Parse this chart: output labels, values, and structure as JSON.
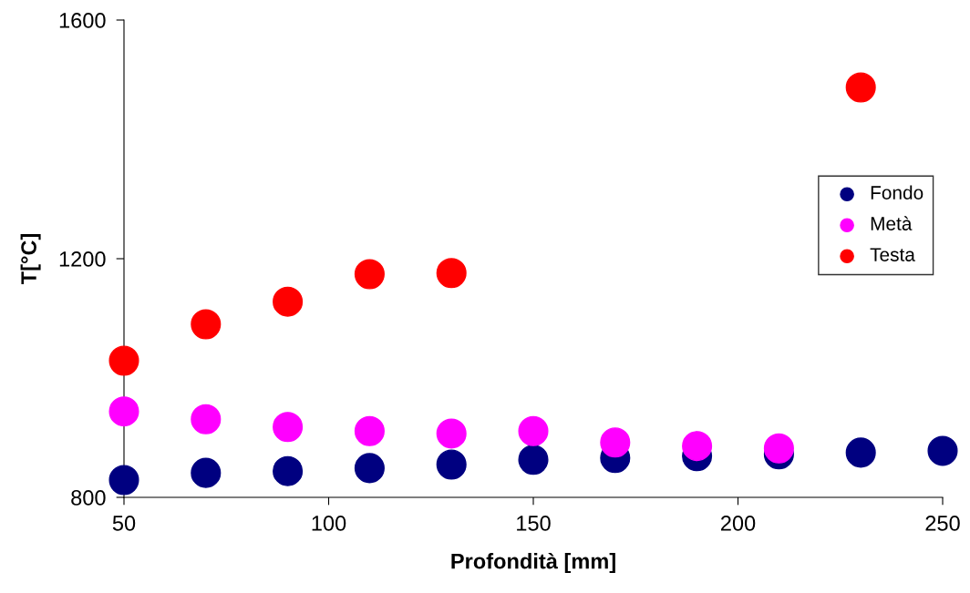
{
  "chart_data": {
    "type": "scatter",
    "xlabel": "Profondità [mm]",
    "ylabel": "T[°C]",
    "xlim": [
      50,
      250
    ],
    "xticks": [
      50,
      100,
      150,
      200,
      250
    ],
    "ylim": [
      800,
      1600
    ],
    "yticks": [
      800,
      1200,
      1600
    ],
    "grid": false,
    "legend": "right",
    "marker": "circle",
    "series": [
      {
        "name": "Fondo",
        "color": "#000080",
        "x": [
          50,
          70,
          90,
          110,
          130,
          150,
          170,
          190,
          210,
          230,
          250
        ],
        "values": [
          829,
          841,
          844,
          849,
          855,
          863,
          866,
          869,
          872,
          875,
          878
        ]
      },
      {
        "name": "Metà",
        "color": "#ff00ff",
        "x": [
          50,
          70,
          90,
          110,
          130,
          150,
          170,
          190,
          210
        ],
        "values": [
          944,
          931,
          918,
          911,
          907,
          911,
          892,
          886,
          882
        ]
      },
      {
        "name": "Testa",
        "color": "#ff0000",
        "x": [
          50,
          70,
          90,
          110,
          130,
          230
        ],
        "values": [
          1029,
          1090,
          1128,
          1174,
          1176,
          1487
        ]
      }
    ]
  }
}
